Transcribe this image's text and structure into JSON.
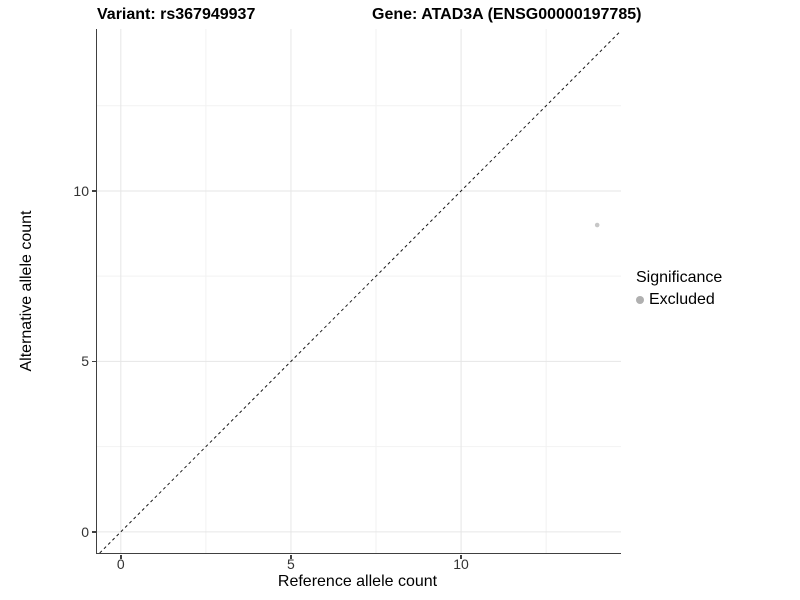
{
  "titles": {
    "left": "Variant: rs367949937",
    "right": "Gene: ATAD3A (ENSG00000197785)"
  },
  "chart_data": {
    "type": "scatter",
    "title_left": "Variant: rs367949937",
    "title_right": "Gene: ATAD3A (ENSG00000197785)",
    "xlabel": "Reference allele count",
    "ylabel": "Alternative allele count",
    "xlim": [
      -0.7,
      14.7
    ],
    "ylim": [
      -0.62,
      14.75
    ],
    "x_ticks": [
      0,
      5,
      10
    ],
    "y_ticks": [
      0,
      5,
      10
    ],
    "x_minor_ticks": [
      2.5,
      7.5,
      12.5
    ],
    "y_minor_ticks": [
      2.5,
      7.5,
      12.5
    ],
    "grid": true,
    "points": [
      {
        "x": 14,
        "y": 9,
        "significance": "Excluded"
      }
    ],
    "point_color": "#c7c7c7",
    "point_radius": 2.3,
    "identity_line": {
      "style": "dashed",
      "color": "#1a1a1a",
      "slope": 1,
      "intercept": 0
    },
    "legend": {
      "title": "Significance",
      "position": "right",
      "items": [
        {
          "label": "Excluded",
          "color": "#b0b0b0"
        }
      ]
    },
    "colors": {
      "grid_major": "#e6e6e6",
      "grid_minor": "#f2f2f2",
      "axis_line": "#404040",
      "tick_label": "#333333"
    }
  }
}
